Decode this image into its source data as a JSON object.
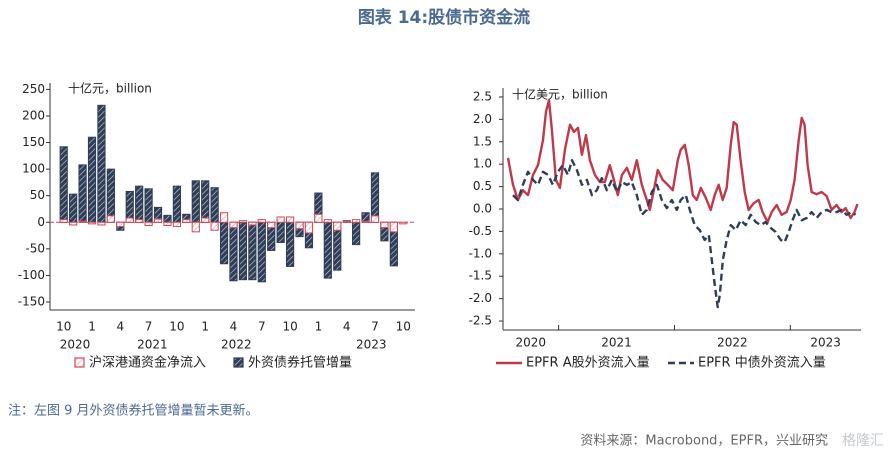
{
  "title": "图表 14:股债市资金流",
  "chart_data": [
    {
      "type": "bar",
      "unit_label": "十亿元，billion",
      "categories": [
        "10",
        null,
        null,
        "1",
        null,
        null,
        "4",
        null,
        null,
        "7",
        null,
        null,
        "10",
        null,
        null,
        "1",
        null,
        null,
        "4",
        null,
        null,
        "7",
        null,
        null,
        "10",
        null,
        null,
        "1",
        null,
        null,
        "4",
        null,
        null,
        "7",
        null,
        null,
        "10"
      ],
      "year_labels": [
        "2020",
        "2021",
        "2022",
        "2023"
      ],
      "series": [
        {
          "name": "沪深港通资金净流入",
          "color": "#d04a5a",
          "values": [
            5,
            -5,
            2,
            -3,
            -5,
            12,
            -8,
            8,
            5,
            -6,
            6,
            -6,
            -8,
            5,
            -18,
            8,
            -15,
            18,
            -10,
            3,
            -5,
            5,
            -10,
            10,
            10,
            -12,
            -20,
            15,
            5,
            -15,
            2,
            5,
            2,
            12,
            -10,
            -18,
            -3
          ]
        },
        {
          "name": "外资债券托管增量",
          "color": "#2f3d56",
          "values": [
            142,
            53,
            108,
            160,
            220,
            100,
            -15,
            58,
            68,
            63,
            28,
            13,
            68,
            15,
            78,
            78,
            65,
            -78,
            -110,
            -108,
            -108,
            -112,
            -53,
            -38,
            -83,
            -27,
            -48,
            55,
            -105,
            -90,
            3,
            -42,
            18,
            93,
            -35,
            -82,
            null
          ]
        }
      ],
      "ylim": [
        -165,
        262
      ],
      "yticks": [
        -150,
        -100,
        -50,
        0,
        50,
        100,
        150,
        200,
        250
      ]
    },
    {
      "type": "line",
      "unit_label": "十亿美元，billion",
      "xlim": [
        2020.52,
        2023.61
      ],
      "xticks": [
        2020,
        2021,
        2022,
        2023
      ],
      "series": [
        {
          "name": "EPFR A股外资流入量",
          "color": "#c0394a",
          "line_style": "solid",
          "x": [
            2020.563,
            2020.606,
            2020.649,
            2020.692,
            2020.736,
            2020.779,
            2020.822,
            2020.865,
            2020.891,
            2020.917,
            2020.942,
            2020.977,
            2021.011,
            2021.054,
            2021.098,
            2021.132,
            2021.167,
            2021.201,
            2021.236,
            2021.27,
            2021.313,
            2021.356,
            2021.399,
            2021.442,
            2021.477,
            2021.511,
            2021.546,
            2021.589,
            2021.632,
            2021.675,
            2021.718,
            2021.761,
            2021.787,
            2021.822,
            2021.856,
            2021.899,
            2021.942,
            2021.986,
            2022.029,
            2022.054,
            2022.089,
            2022.123,
            2022.158,
            2022.192,
            2022.227,
            2022.27,
            2022.313,
            2022.347,
            2022.382,
            2022.416,
            2022.451,
            2022.485,
            2022.511,
            2022.537,
            2022.571,
            2022.606,
            2022.64,
            2022.684,
            2022.727,
            2022.761,
            2022.804,
            2022.839,
            2022.882,
            2022.925,
            2022.968,
            2023.003,
            2023.037,
            2023.072,
            2023.098,
            2023.123,
            2023.149,
            2023.184,
            2023.227,
            2023.27,
            2023.313,
            2023.356,
            2023.399,
            2023.442,
            2023.477,
            2023.52,
            2023.554,
            2023.58
          ],
          "values": [
            1.14,
            0.54,
            0.2,
            0.42,
            0.31,
            0.76,
            0.98,
            1.54,
            2.17,
            2.43,
            1.76,
            0.65,
            0.47,
            1.32,
            1.88,
            1.72,
            1.81,
            1.21,
            1.65,
            1.09,
            0.76,
            0.6,
            0.6,
            0.98,
            0.65,
            0.31,
            0.76,
            0.92,
            0.65,
            1.09,
            0.54,
            0.2,
            -0.02,
            0.42,
            0.87,
            0.65,
            0.54,
            0.42,
            1.09,
            1.32,
            1.43,
            0.98,
            0.31,
            0.2,
            0.47,
            0.25,
            -0.02,
            0.31,
            0.54,
            0.2,
            0.47,
            1.43,
            1.94,
            1.88,
            1.09,
            0.38,
            -0.02,
            0.13,
            0.2,
            -0.07,
            -0.29,
            -0.07,
            0.09,
            -0.13,
            -0.07,
            0.2,
            0.65,
            1.54,
            2.03,
            1.88,
            0.98,
            0.38,
            0.33,
            0.38,
            0.29,
            -0.02,
            0.09,
            -0.07,
            0.02,
            -0.2,
            -0.07,
            0.11
          ]
        },
        {
          "name": "EPFR 中债外资流入量",
          "color": "#2f3d56",
          "line_style": "dashed",
          "x": [
            2020.606,
            2020.649,
            2020.692,
            2020.736,
            2020.779,
            2020.822,
            2020.865,
            2020.908,
            2020.951,
            2020.994,
            2021.037,
            2021.08,
            2021.115,
            2021.158,
            2021.201,
            2021.244,
            2021.287,
            2021.33,
            2021.373,
            2021.417,
            2021.46,
            2021.503,
            2021.546,
            2021.589,
            2021.632,
            2021.675,
            2021.718,
            2021.761,
            2021.804,
            2021.848,
            2021.891,
            2021.934,
            2021.977,
            2022.02,
            2022.054,
            2022.098,
            2022.132,
            2022.175,
            2022.218,
            2022.261,
            2022.296,
            2022.322,
            2022.348,
            2022.373,
            2022.391,
            2022.417,
            2022.451,
            2022.486,
            2022.529,
            2022.572,
            2022.615,
            2022.658,
            2022.701,
            2022.744,
            2022.787,
            2022.83,
            2022.873,
            2022.917,
            2022.951,
            2022.986,
            2023.02,
            2023.054,
            2023.098,
            2023.141,
            2023.184,
            2023.227,
            2023.27,
            2023.313,
            2023.356,
            2023.399,
            2023.442,
            2023.486,
            2023.529,
            2023.563
          ],
          "values": [
            0.31,
            0.2,
            0.54,
            0.83,
            0.65,
            0.54,
            0.83,
            0.76,
            0.54,
            0.83,
            0.98,
            0.76,
            1.09,
            0.87,
            0.54,
            0.65,
            0.31,
            0.42,
            0.69,
            0.42,
            0.65,
            0.38,
            0.6,
            0.54,
            0.6,
            0.31,
            -0.13,
            -0.02,
            0.38,
            0.54,
            0.2,
            0.02,
            0.2,
            -0.02,
            0.2,
            0.31,
            -0.02,
            -0.36,
            -0.47,
            -0.69,
            -0.58,
            -1.14,
            -1.7,
            -2.19,
            -1.92,
            -1.14,
            -0.69,
            -0.36,
            -0.47,
            -0.25,
            -0.36,
            -0.13,
            -0.29,
            -0.36,
            -0.29,
            -0.42,
            -0.51,
            -0.69,
            -0.74,
            -0.51,
            -0.25,
            -0.02,
            -0.25,
            -0.2,
            -0.07,
            -0.2,
            -0.07,
            -0.02,
            -0.07,
            -0.07,
            -0.02,
            -0.13,
            -0.07,
            -0.13
          ]
        }
      ],
      "ylim": [
        -2.7,
        2.7
      ],
      "yticks": [
        2.5,
        {
          "value": 2,
          "label": "2.0"
        },
        1.5,
        {
          "value": 1,
          "label": "1.0"
        },
        0.5,
        {
          "value": 0,
          "label": "0.0"
        },
        -0.5,
        {
          "value": -1,
          "label": "-1.0"
        },
        -1.5,
        {
          "value": -2,
          "label": "-2.0"
        },
        -2.5
      ]
    }
  ],
  "note": "注：左图 9 月外资债券托管增量暂未更新。",
  "source": "资料来源：Macrobond，EPFR，兴业研究",
  "watermark": "格隆汇"
}
